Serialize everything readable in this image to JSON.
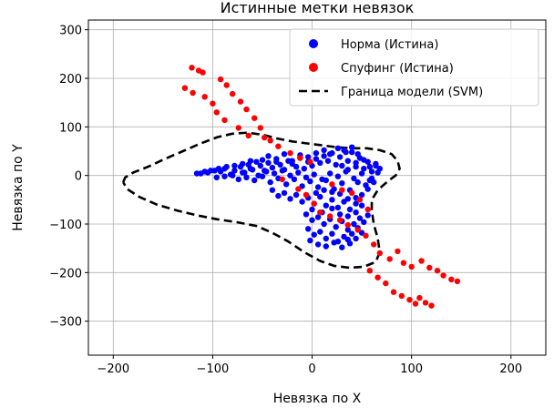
{
  "chart_data": {
    "type": "scatter",
    "title": "Истинные метки невязок",
    "xlabel": "Невязка по X",
    "ylabel": "Невязка по Y",
    "xlim": [
      -225,
      235
    ],
    "ylim": [
      -370,
      320
    ],
    "xticks": [
      -200,
      -100,
      0,
      100,
      200
    ],
    "yticks": [
      -300,
      -200,
      -100,
      0,
      100,
      200,
      300
    ],
    "grid": true,
    "legend_position": "top-right",
    "series": [
      {
        "name": "Норма (Истина)",
        "color": "#0000ff",
        "marker": "circle",
        "points": [
          [
            -112,
            4
          ],
          [
            -105,
            6
          ],
          [
            -98,
            10
          ],
          [
            -92,
            8
          ],
          [
            -88,
            14
          ],
          [
            -82,
            2
          ],
          [
            -78,
            10
          ],
          [
            -72,
            18
          ],
          [
            -68,
            6
          ],
          [
            -64,
            22
          ],
          [
            -60,
            12
          ],
          [
            -56,
            28
          ],
          [
            -52,
            20
          ],
          [
            -48,
            10
          ],
          [
            -44,
            26
          ],
          [
            -40,
            16
          ],
          [
            -36,
            34
          ],
          [
            -32,
            22
          ],
          [
            -28,
            12
          ],
          [
            -24,
            30
          ],
          [
            -20,
            24
          ],
          [
            -16,
            18
          ],
          [
            -12,
            36
          ],
          [
            -8,
            14
          ],
          [
            -4,
            28
          ],
          [
            0,
            20
          ],
          [
            4,
            34
          ],
          [
            8,
            26
          ],
          [
            12,
            40
          ],
          [
            16,
            30
          ],
          [
            20,
            46
          ],
          [
            24,
            22
          ],
          [
            28,
            38
          ],
          [
            32,
            52
          ],
          [
            36,
            30
          ],
          [
            40,
            48
          ],
          [
            44,
            18
          ],
          [
            48,
            36
          ],
          [
            52,
            14
          ],
          [
            56,
            28
          ],
          [
            60,
            8
          ],
          [
            64,
            20
          ],
          [
            68,
            14
          ],
          [
            -96,
            -4
          ],
          [
            -88,
            -2
          ],
          [
            -80,
            0
          ],
          [
            -74,
            -8
          ],
          [
            -66,
            -4
          ],
          [
            -58,
            -10
          ],
          [
            -50,
            -2
          ],
          [
            -42,
            -14
          ],
          [
            -34,
            -6
          ],
          [
            -26,
            -18
          ],
          [
            -18,
            -8
          ],
          [
            -10,
            -22
          ],
          [
            -2,
            -12
          ],
          [
            6,
            -24
          ],
          [
            14,
            -10
          ],
          [
            22,
            -28
          ],
          [
            30,
            -16
          ],
          [
            38,
            -30
          ],
          [
            46,
            -14
          ],
          [
            54,
            -20
          ],
          [
            60,
            -6
          ],
          [
            -70,
            6
          ],
          [
            -62,
            14
          ],
          [
            -54,
            0
          ],
          [
            -46,
            8
          ],
          [
            -38,
            4
          ],
          [
            -30,
            10
          ],
          [
            -22,
            0
          ],
          [
            -14,
            6
          ],
          [
            -6,
            -4
          ],
          [
            2,
            2
          ],
          [
            10,
            -8
          ],
          [
            18,
            4
          ],
          [
            26,
            -2
          ],
          [
            34,
            8
          ],
          [
            42,
            -6
          ],
          [
            50,
            4
          ],
          [
            58,
            -10
          ],
          [
            -40,
            -30
          ],
          [
            -34,
            -42
          ],
          [
            -28,
            -36
          ],
          [
            -22,
            -48
          ],
          [
            -16,
            -40
          ],
          [
            -10,
            -54
          ],
          [
            -4,
            -46
          ],
          [
            2,
            -58
          ],
          [
            8,
            -44
          ],
          [
            14,
            -62
          ],
          [
            20,
            -50
          ],
          [
            26,
            -66
          ],
          [
            32,
            -54
          ],
          [
            38,
            -70
          ],
          [
            44,
            -58
          ],
          [
            -20,
            30
          ],
          [
            -12,
            42
          ],
          [
            -4,
            38
          ],
          [
            4,
            46
          ],
          [
            12,
            52
          ],
          [
            18,
            44
          ],
          [
            26,
            56
          ],
          [
            34,
            48
          ],
          [
            40,
            58
          ],
          [
            46,
            44
          ],
          [
            -6,
            -80
          ],
          [
            0,
            -92
          ],
          [
            6,
            -86
          ],
          [
            12,
            -100
          ],
          [
            18,
            -90
          ],
          [
            24,
            -106
          ],
          [
            30,
            -94
          ],
          [
            36,
            -112
          ],
          [
            42,
            -100
          ],
          [
            48,
            -88
          ],
          [
            -4,
            -110
          ],
          [
            2,
            -122
          ],
          [
            8,
            -116
          ],
          [
            14,
            -130
          ],
          [
            20,
            -120
          ],
          [
            26,
            -136
          ],
          [
            32,
            -126
          ],
          [
            38,
            -140
          ],
          [
            44,
            -130
          ],
          [
            50,
            -118
          ],
          [
            -2,
            -134
          ],
          [
            6,
            -142
          ],
          [
            14,
            -146
          ],
          [
            22,
            -138
          ],
          [
            30,
            -148
          ],
          [
            36,
            -132
          ],
          [
            40,
            -120
          ],
          [
            46,
            -108
          ],
          [
            52,
            -96
          ],
          [
            56,
            -82
          ],
          [
            0,
            -70
          ],
          [
            10,
            -76
          ],
          [
            20,
            -68
          ],
          [
            28,
            -80
          ],
          [
            36,
            -84
          ],
          [
            44,
            -76
          ],
          [
            50,
            -62
          ],
          [
            -50,
            32
          ],
          [
            -44,
            40
          ],
          [
            -36,
            28
          ],
          [
            -28,
            44
          ],
          [
            -62,
            30
          ],
          [
            -70,
            24
          ],
          [
            -78,
            20
          ],
          [
            -86,
            18
          ],
          [
            -94,
            14
          ],
          [
            -102,
            10
          ],
          [
            -108,
            8
          ],
          [
            -116,
            4
          ],
          [
            30,
            20
          ],
          [
            36,
            12
          ],
          [
            44,
            26
          ],
          [
            52,
            32
          ],
          [
            58,
            18
          ],
          [
            64,
            24
          ],
          [
            66,
            6
          ],
          [
            62,
            -14
          ],
          [
            56,
            -28
          ],
          [
            50,
            -40
          ],
          [
            44,
            -46
          ],
          [
            36,
            -48
          ],
          [
            28,
            -38
          ],
          [
            20,
            -34
          ],
          [
            12,
            -30
          ],
          [
            4,
            -36
          ]
        ]
      },
      {
        "name": "Спуфинг (Истина)",
        "color": "#ff0000",
        "marker": "circle",
        "points": [
          [
            -121,
            222
          ],
          [
            -114,
            216
          ],
          [
            -110,
            212
          ],
          [
            -128,
            180
          ],
          [
            -120,
            170
          ],
          [
            -108,
            162
          ],
          [
            -100,
            148
          ],
          [
            -96,
            130
          ],
          [
            -92,
            198
          ],
          [
            -86,
            186
          ],
          [
            -80,
            168
          ],
          [
            -72,
            152
          ],
          [
            -66,
            136
          ],
          [
            -58,
            118
          ],
          [
            -52,
            98
          ],
          [
            -88,
            114
          ],
          [
            -74,
            98
          ],
          [
            -64,
            82
          ],
          [
            -48,
            78
          ],
          [
            -42,
            72
          ],
          [
            -34,
            60
          ],
          [
            -22,
            46
          ],
          [
            -12,
            36
          ],
          [
            -2,
            28
          ],
          [
            -30,
            -8
          ],
          [
            -14,
            -28
          ],
          [
            -6,
            -40
          ],
          [
            2,
            -58
          ],
          [
            8,
            -76
          ],
          [
            18,
            -84
          ],
          [
            28,
            -92
          ],
          [
            36,
            -102
          ],
          [
            46,
            -112
          ],
          [
            54,
            -124
          ],
          [
            62,
            -142
          ],
          [
            68,
            -160
          ],
          [
            78,
            -172
          ],
          [
            86,
            -156
          ],
          [
            92,
            -180
          ],
          [
            100,
            -188
          ],
          [
            110,
            -176
          ],
          [
            118,
            -190
          ],
          [
            126,
            -196
          ],
          [
            132,
            -206
          ],
          [
            140,
            -214
          ],
          [
            146,
            -218
          ],
          [
            58,
            -196
          ],
          [
            66,
            -210
          ],
          [
            74,
            -222
          ],
          [
            82,
            -240
          ],
          [
            90,
            -248
          ],
          [
            98,
            -256
          ],
          [
            104,
            -264
          ],
          [
            108,
            -252
          ],
          [
            114,
            -262
          ],
          [
            120,
            -268
          ],
          [
            20,
            -18
          ],
          [
            30,
            -30
          ],
          [
            40,
            -36
          ],
          [
            48,
            -50
          ],
          [
            56,
            -70
          ]
        ]
      }
    ],
    "boundary": {
      "name": "Граница модели (SVM)",
      "color": "#000000",
      "style": "dashed",
      "points": [
        [
          -190,
          -14
        ],
        [
          -188,
          -4
        ],
        [
          -180,
          6
        ],
        [
          -165,
          18
        ],
        [
          -148,
          34
        ],
        [
          -130,
          50
        ],
        [
          -112,
          66
        ],
        [
          -95,
          79
        ],
        [
          -80,
          86
        ],
        [
          -65,
          88
        ],
        [
          -50,
          84
        ],
        [
          -35,
          76
        ],
        [
          -20,
          70
        ],
        [
          -5,
          66
        ],
        [
          10,
          62
        ],
        [
          25,
          58
        ],
        [
          40,
          56
        ],
        [
          55,
          56
        ],
        [
          68,
          52
        ],
        [
          80,
          44
        ],
        [
          86,
          30
        ],
        [
          88,
          14
        ],
        [
          84,
          0
        ],
        [
          76,
          -12
        ],
        [
          66,
          -30
        ],
        [
          60,
          -50
        ],
        [
          60,
          -72
        ],
        [
          62,
          -100
        ],
        [
          66,
          -130
        ],
        [
          68,
          -158
        ],
        [
          64,
          -178
        ],
        [
          52,
          -188
        ],
        [
          38,
          -190
        ],
        [
          22,
          -186
        ],
        [
          8,
          -176
        ],
        [
          -8,
          -158
        ],
        [
          -24,
          -136
        ],
        [
          -40,
          -118
        ],
        [
          -56,
          -104
        ],
        [
          -76,
          -96
        ],
        [
          -96,
          -90
        ],
        [
          -116,
          -82
        ],
        [
          -136,
          -72
        ],
        [
          -156,
          -60
        ],
        [
          -174,
          -44
        ],
        [
          -186,
          -28
        ],
        [
          -190,
          -14
        ]
      ]
    }
  }
}
